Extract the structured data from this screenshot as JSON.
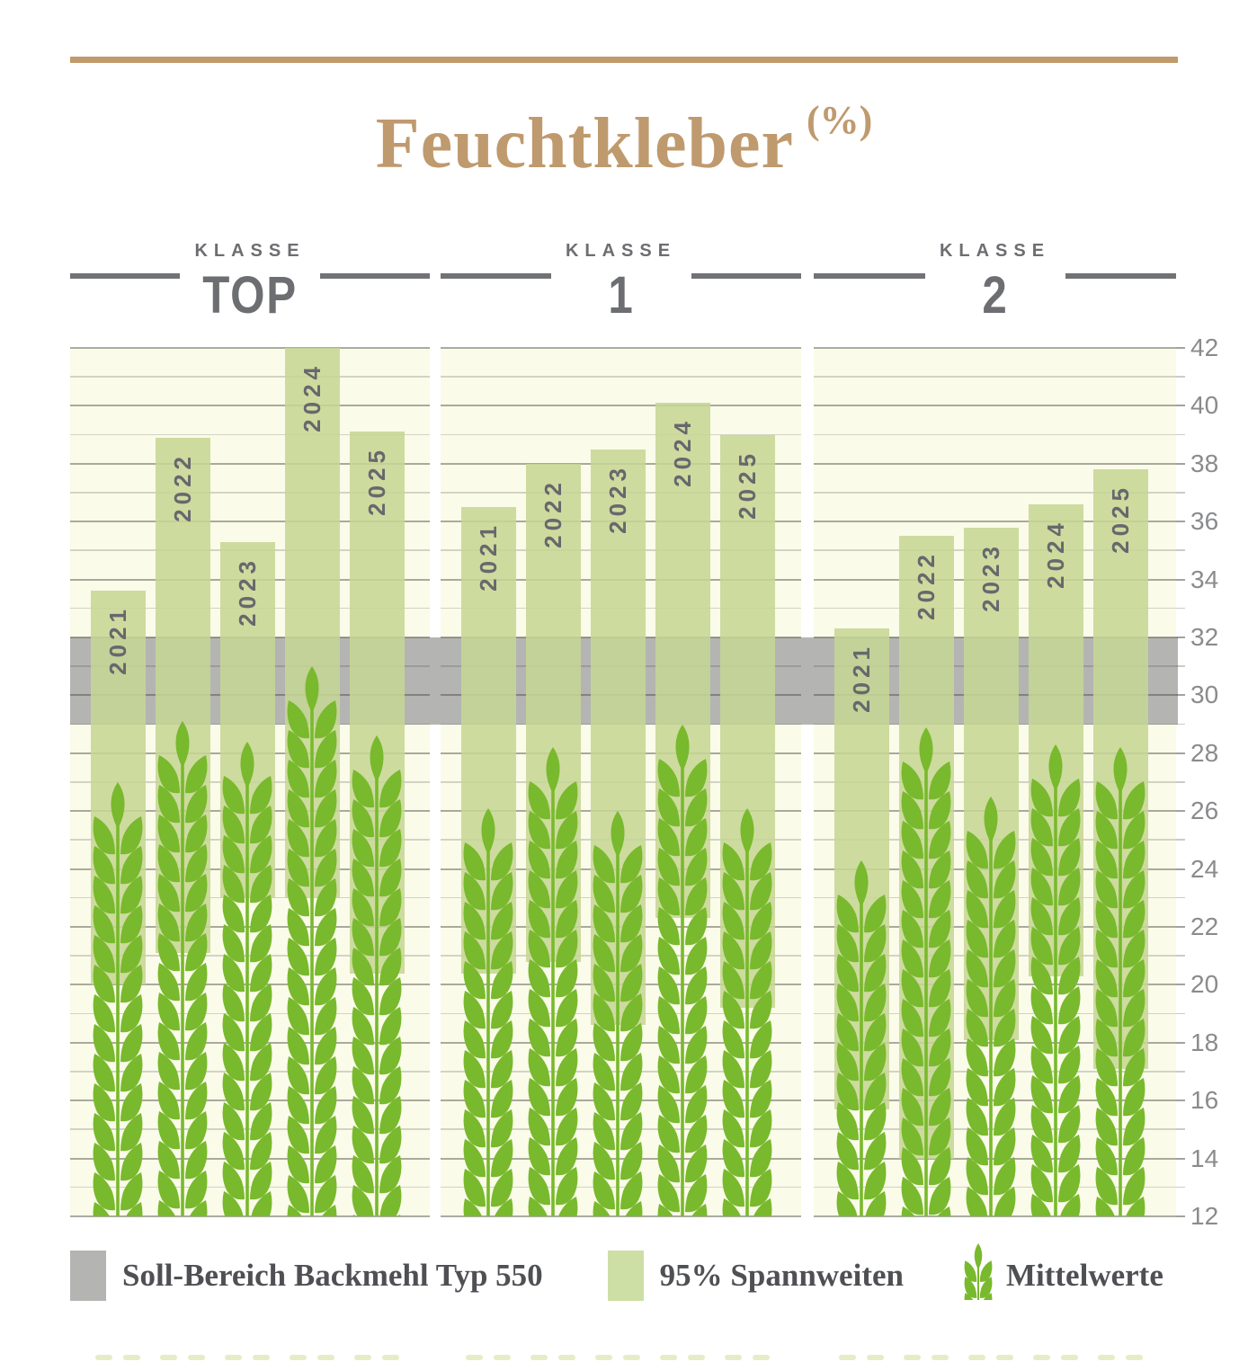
{
  "title": {
    "text": "Feuchtkleber",
    "unit": "(%)"
  },
  "axis": {
    "min": 12,
    "max": 42,
    "minor_step": 1,
    "label_step": 2,
    "tick_labels": [
      "42",
      "40",
      "38",
      "36",
      "34",
      "32",
      "30",
      "28",
      "26",
      "24",
      "22",
      "20",
      "18",
      "16",
      "14",
      "12"
    ]
  },
  "chart_data": {
    "type": "range-bar",
    "title": "Feuchtkleber (%)",
    "ylim": [
      12,
      42
    ],
    "grid": "horizontal minor every 1, major every 2, labels right side",
    "legend_position": "bottom",
    "soll_bereich": {
      "label": "Soll-Bereich Backmehl Typ 550",
      "min": 29,
      "max": 32
    },
    "categories": [
      "2021",
      "2022",
      "2023",
      "2024",
      "2025"
    ],
    "panels": [
      {
        "klasse_label": "KLASSE",
        "name": "TOP",
        "ranges_95pct": [
          [
            20.0,
            33.6
          ],
          [
            21.1,
            38.9
          ],
          [
            23.0,
            35.3
          ],
          [
            23.0,
            42.0
          ],
          [
            20.4,
            39.1
          ]
        ],
        "means": [
          27.0,
          29.1,
          28.4,
          31.0,
          28.6
        ]
      },
      {
        "klasse_label": "KLASSE",
        "name": "1",
        "ranges_95pct": [
          [
            20.4,
            36.5
          ],
          [
            20.8,
            38.0
          ],
          [
            18.6,
            38.5
          ],
          [
            22.3,
            40.1
          ],
          [
            19.2,
            39.0
          ]
        ],
        "means": [
          26.1,
          28.2,
          26.0,
          29.0,
          26.1
        ]
      },
      {
        "klasse_label": "KLASSE",
        "name": "2",
        "ranges_95pct": [
          [
            15.7,
            32.3
          ],
          [
            14.0,
            35.5
          ],
          [
            18.1,
            35.8
          ],
          [
            20.3,
            36.6
          ],
          [
            17.1,
            37.8
          ]
        ],
        "means": [
          24.3,
          28.9,
          26.5,
          28.3,
          28.2
        ]
      }
    ]
  },
  "legend": {
    "items": [
      {
        "icon": "gray-square-swatch",
        "label": "Soll-Bereich Backmehl Typ 550"
      },
      {
        "icon": "green-square-swatch",
        "label": "95% Spannweiten"
      },
      {
        "icon": "wheat-ear-icon",
        "label": "Mittelwerte"
      }
    ]
  },
  "colors": {
    "accent_tan": "#bf9a6e",
    "panel_cream": "#fafbe9",
    "range_bar_green": "rgba(197,214,148,0.87)",
    "legend_bar_green": "#cddfa4",
    "target_band_gray": "#b4b5b2",
    "wheat_green": "#79b92d",
    "header_gray": "#6d6e71",
    "axis_label_gray": "#8a8b8d",
    "bottom_dash_green": "#e6ecc6"
  }
}
